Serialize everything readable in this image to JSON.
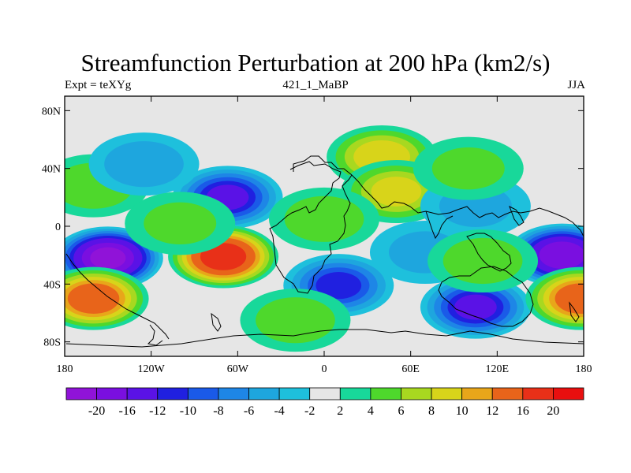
{
  "header": {
    "title": "Streamfunction Perturbation at 200 hPa (km2/s)",
    "left_label": "Expt = teXYg",
    "center_label": "421_1_MaBP",
    "right_label": "JJA"
  },
  "chart_data": {
    "type": "heatmap",
    "title": "Streamfunction Perturbation at 200 hPa (km2/s)",
    "x_ticks": [
      "180",
      "120W",
      "60W",
      "0",
      "60E",
      "120E",
      "180"
    ],
    "y_ticks": [
      "80N",
      "40N",
      "0",
      "40S",
      "80S"
    ],
    "x_range": [
      -180,
      180
    ],
    "y_range": [
      -90,
      90
    ],
    "colorbar": {
      "labels": [
        "-20",
        "-16",
        "-12",
        "-10",
        "-8",
        "-6",
        "-4",
        "-2",
        "2",
        "4",
        "6",
        "8",
        "10",
        "12",
        "16",
        "20"
      ],
      "colors": [
        "#9013d8",
        "#7a0fe0",
        "#5a12e6",
        "#2020e0",
        "#1a5ae8",
        "#1e86e6",
        "#1ea6de",
        "#1ec0dc",
        "#e6e6e6",
        "#18d89a",
        "#4ed82c",
        "#a8d820",
        "#d8d41a",
        "#e8a61a",
        "#e8641a",
        "#e83018",
        "#e80f0f"
      ]
    },
    "anomalies": [
      {
        "lon": -150,
        "lat": -22,
        "value": -20
      },
      {
        "lon": -160,
        "lat": -50,
        "value": 14
      },
      {
        "lon": -67,
        "lat": 20,
        "value": -12
      },
      {
        "lon": -70,
        "lat": -21,
        "value": 18
      },
      {
        "lon": -160,
        "lat": 28,
        "value": 5
      },
      {
        "lon": -125,
        "lat": 43,
        "value": -5
      },
      {
        "lon": 10,
        "lat": -41,
        "value": -10
      },
      {
        "lon": 105,
        "lat": -56,
        "value": -12
      },
      {
        "lon": 165,
        "lat": -20,
        "value": -18
      },
      {
        "lon": 178,
        "lat": -50,
        "value": 14
      },
      {
        "lon": 40,
        "lat": 48,
        "value": 9
      },
      {
        "lon": 50,
        "lat": 24,
        "value": 8
      },
      {
        "lon": 0,
        "lat": 5,
        "value": 5
      },
      {
        "lon": 105,
        "lat": 14,
        "value": -4
      },
      {
        "lon": 70,
        "lat": -18,
        "value": -4
      },
      {
        "lon": 110,
        "lat": -24,
        "value": 5
      },
      {
        "lon": -20,
        "lat": -65,
        "value": 5
      },
      {
        "lon": 100,
        "lat": 40,
        "value": 4
      },
      {
        "lon": -100,
        "lat": 2,
        "value": 4
      }
    ]
  }
}
